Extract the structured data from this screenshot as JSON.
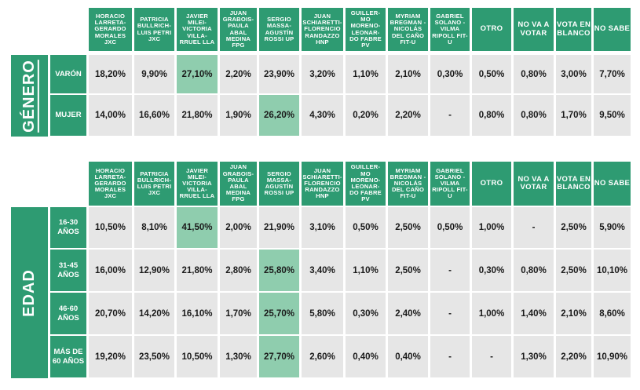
{
  "chart_data": [
    {
      "type": "table",
      "section_label": "GÉNERO",
      "columns": [
        "HORACIO LARRETA-GERARDO MORALES JXC",
        "PATRICIA BULLRICH-LUIS PETRI JXC",
        "JAVIER MILEI-VICTORIA VILLA-RRUEL LLA",
        "JUAN GRABOIS-PAULA ABAL MEDINA FPG",
        "SERGIO MASSA-AGUSTÍN ROSSI UP",
        "JUAN SCHIARETTI-FLORENCIO RANDAZZO HNP",
        "GUILLER-MO MORENO-LEONAR-DO FABRE PV",
        "MYRIAM BREGMAN - NICOLÁS DEL CAÑO FIT-U",
        "GABRIEL SOLANO - VILMA RIPOLL FIT-U",
        "OTRO",
        "NO VA A VOTAR",
        "VOTA EN BLANCO",
        "NO SABE"
      ],
      "rows": [
        {
          "label": "VARÓN",
          "values": [
            "18,20%",
            "9,90%",
            "27,10%",
            "2,20%",
            "23,90%",
            "3,20%",
            "1,10%",
            "2,10%",
            "0,30%",
            "0,50%",
            "0,80%",
            "3,00%",
            "7,70%"
          ],
          "highlight": 2
        },
        {
          "label": "MUJER",
          "values": [
            "14,00%",
            "16,60%",
            "21,80%",
            "1,90%",
            "26,20%",
            "4,30%",
            "0,20%",
            "2,20%",
            "-",
            "0,80%",
            "0,80%",
            "1,70%",
            "9,50%"
          ],
          "highlight": 4
        }
      ]
    },
    {
      "type": "table",
      "section_label": "EDAD",
      "columns": [
        "HORACIO LARRETA-GERARDO MORALES JXC",
        "PATRICIA BULLRICH-LUIS PETRI JXC",
        "JAVIER MILEI-VICTORIA VILLA-RRUEL LLA",
        "JUAN GRABOIS-PAULA ABAL MEDINA FPG",
        "SERGIO MASSA-AGUSTÍN ROSSI UP",
        "JUAN SCHIARETTI-FLORENCIO RANDAZZO HNP",
        "GUILLER-MO MORENO-LEONAR-DO FABRE PV",
        "MYRIAM BREGMAN - NICOLÁS DEL CAÑO FIT-U",
        "GABRIEL SOLANO - VILMA RIPOLL FIT-U",
        "OTRO",
        "NO VA A VOTAR",
        "VOTA EN BLANCO",
        "NO SABE"
      ],
      "rows": [
        {
          "label": "16-30 AÑOS",
          "values": [
            "10,50%",
            "8,10%",
            "41,50%",
            "2,00%",
            "21,90%",
            "3,10%",
            "0,50%",
            "2,50%",
            "0,50%",
            "1,00%",
            "-",
            "2,50%",
            "5,90%"
          ],
          "highlight": 2
        },
        {
          "label": "31-45 AÑOS",
          "values": [
            "16,00%",
            "12,90%",
            "21,80%",
            "2,80%",
            "25,80%",
            "3,40%",
            "1,10%",
            "2,50%",
            "-",
            "0,30%",
            "0,80%",
            "2,50%",
            "10,10%"
          ],
          "highlight": 4
        },
        {
          "label": "46-60 AÑOS",
          "values": [
            "20,70%",
            "14,20%",
            "16,10%",
            "1,70%",
            "25,70%",
            "5,80%",
            "0,30%",
            "2,40%",
            "-",
            "1,00%",
            "1,40%",
            "2,10%",
            "8,60%"
          ],
          "highlight": 4
        },
        {
          "label": "MÁS DE 60 AÑOS",
          "values": [
            "19,20%",
            "23,50%",
            "10,50%",
            "1,30%",
            "27,70%",
            "2,60%",
            "0,40%",
            "0,40%",
            "-",
            "-",
            "1,30%",
            "2,20%",
            "10,90%"
          ],
          "highlight": 4
        }
      ]
    }
  ],
  "colors": {
    "header": "#2e9b72",
    "cell": "#e6e6e6",
    "highlight": "#8fcdae",
    "header_text": "#ffffff",
    "cell_text": "#1a1a1a"
  }
}
